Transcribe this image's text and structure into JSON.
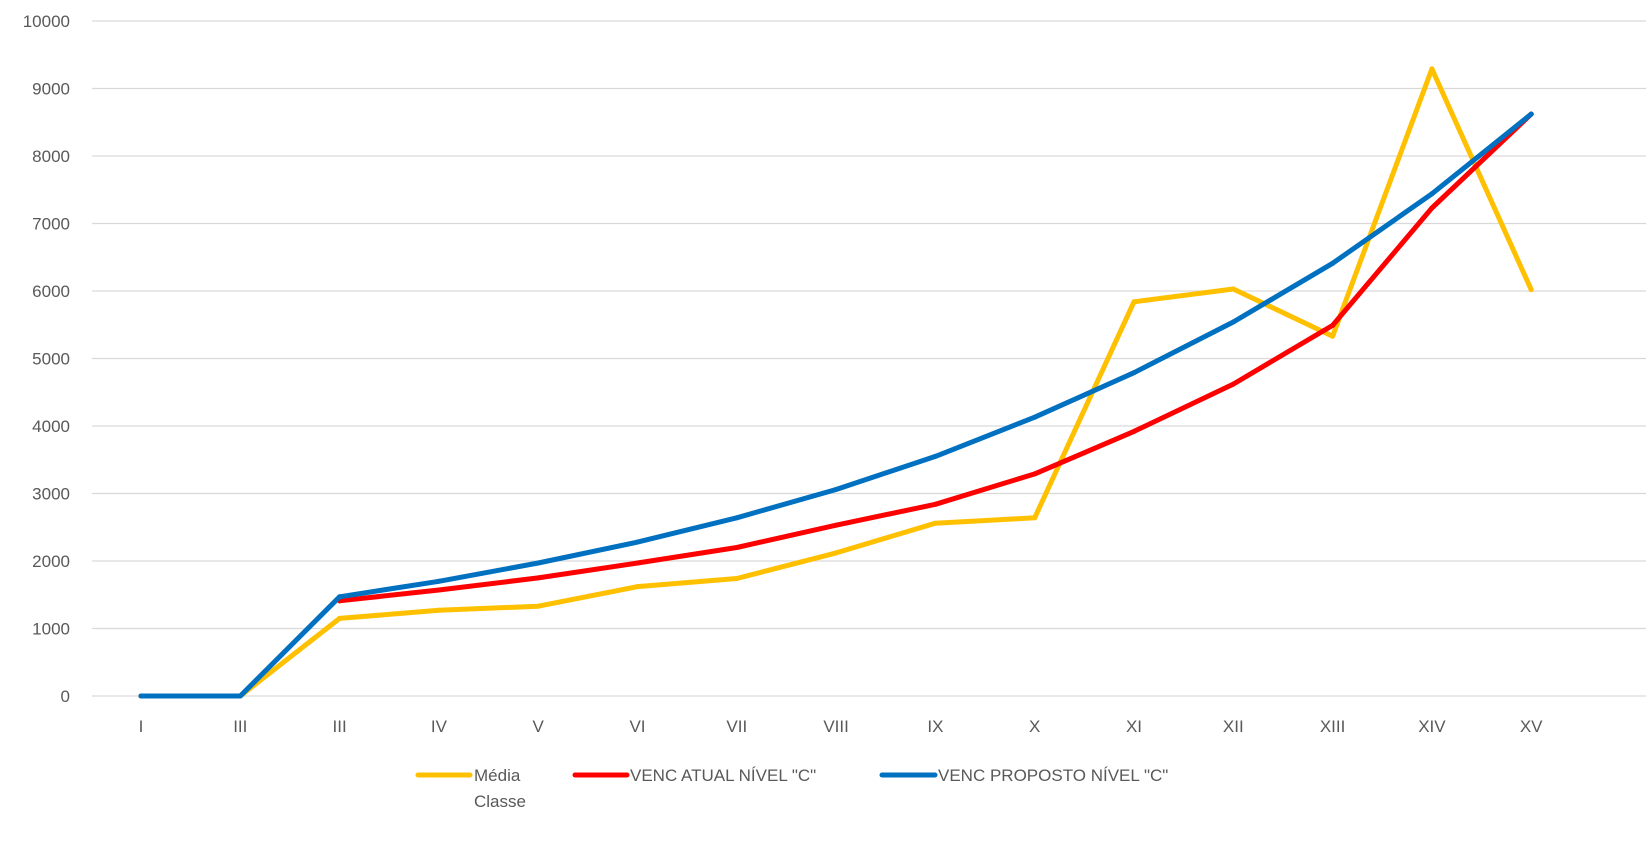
{
  "chart_data": {
    "type": "line",
    "title": "",
    "xlabel": "",
    "ylabel": "",
    "categories": [
      "I",
      "III",
      "III",
      "IV",
      "V",
      "VI",
      "VII",
      "VIII",
      "IX",
      "X",
      "XI",
      "XII",
      "XIII",
      "XIV",
      "XV"
    ],
    "ylim": [
      0,
      10000
    ],
    "yticks": [
      0,
      1000,
      2000,
      3000,
      4000,
      5000,
      6000,
      7000,
      8000,
      9000,
      10000
    ],
    "grid": true,
    "legend_position": "bottom",
    "series": [
      {
        "name": "Média Classe",
        "color": "#FFC000",
        "values": [
          0,
          0,
          1150,
          1270,
          1330,
          1620,
          1740,
          2120,
          2560,
          2640,
          5840,
          6030,
          5330,
          9290,
          6020
        ]
      },
      {
        "name": "VENC ATUAL NÍVEL \"C\"",
        "color": "#FF0000",
        "values": [
          null,
          null,
          1410,
          1570,
          1750,
          1970,
          2200,
          2530,
          2840,
          3290,
          3920,
          4620,
          5490,
          7230,
          8620
        ]
      },
      {
        "name": "VENC PROPOSTO NÍVEL \"C\"",
        "color": "#0070C0",
        "values": [
          0,
          0,
          1470,
          1700,
          1970,
          2280,
          2640,
          3060,
          3550,
          4130,
          4790,
          5540,
          6410,
          7440,
          8620
        ]
      }
    ]
  }
}
